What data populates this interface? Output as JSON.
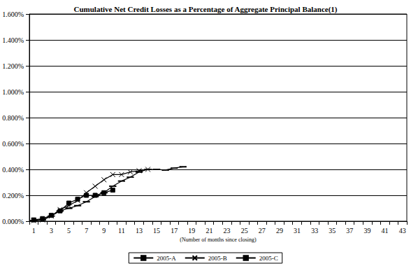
{
  "chart_data": {
    "type": "line",
    "title": "Cumulative Net Credit Losses as a Percentage of Aggregate Principal Balance(1)",
    "xlabel": "(Number of months since closing)",
    "categories": [
      1,
      null,
      3,
      null,
      5,
      null,
      7,
      null,
      9,
      null,
      11,
      null,
      13,
      null,
      15,
      null,
      17,
      null,
      19,
      null,
      21,
      null,
      23,
      null,
      25,
      null,
      27,
      null,
      29,
      null,
      31,
      null,
      33,
      null,
      35,
      null,
      37,
      null,
      39,
      null,
      41,
      null,
      43
    ],
    "series": [
      {
        "name": "2005-A",
        "color": "#000000",
        "marker": "dash",
        "values": [
          0.005,
          0.01,
          0.04,
          0.08,
          0.1,
          0.12,
          0.15,
          0.19,
          0.22,
          0.27,
          0.31,
          0.34,
          0.38,
          0.4,
          0.4,
          0.395,
          0.41,
          0.42,
          null,
          null,
          null,
          null,
          null,
          null,
          null,
          null,
          null,
          null,
          null,
          null,
          null,
          null,
          null,
          null,
          null,
          null,
          null,
          null,
          null,
          null,
          null,
          null,
          null
        ]
      },
      {
        "name": "2005-B",
        "color": "#000000",
        "marker": "x",
        "values": [
          0.005,
          0.01,
          0.04,
          0.09,
          0.12,
          0.16,
          0.22,
          0.27,
          0.32,
          0.36,
          0.36,
          0.38,
          0.39,
          0.4,
          null,
          null,
          null,
          null,
          null,
          null,
          null,
          null,
          null,
          null,
          null,
          null,
          null,
          null,
          null,
          null,
          null,
          null,
          null,
          null,
          null,
          null,
          null,
          null,
          null,
          null,
          null,
          null,
          null
        ]
      },
      {
        "name": "2005-C",
        "color": "#000000",
        "marker": "square",
        "values": [
          0.01,
          0.02,
          0.045,
          0.08,
          0.14,
          0.17,
          0.2,
          0.2,
          0.22,
          0.24,
          null,
          null,
          null,
          null,
          null,
          null,
          null,
          null,
          null,
          null,
          null,
          null,
          null,
          null,
          null,
          null,
          null,
          null,
          null,
          null,
          null,
          null,
          null,
          null,
          null,
          null,
          null,
          null,
          null,
          null,
          null,
          null,
          null
        ]
      }
    ],
    "ylim": [
      0,
      1.6
    ],
    "yticks": [
      {
        "value": 0,
        "label": "0.000%"
      },
      {
        "value": 0.2,
        "label": "0.200%"
      },
      {
        "value": 0.4,
        "label": "0.400%"
      },
      {
        "value": 0.6,
        "label": "0.600%"
      },
      {
        "value": 0.8,
        "label": "0.800%"
      },
      {
        "value": 1.0,
        "label": "1.000%"
      },
      {
        "value": 1.2,
        "label": "1.200%"
      },
      {
        "value": 1.4,
        "label": "1.400%"
      },
      {
        "value": 1.6,
        "label": "1.600%"
      }
    ],
    "grid": true,
    "legend": "bottom"
  }
}
